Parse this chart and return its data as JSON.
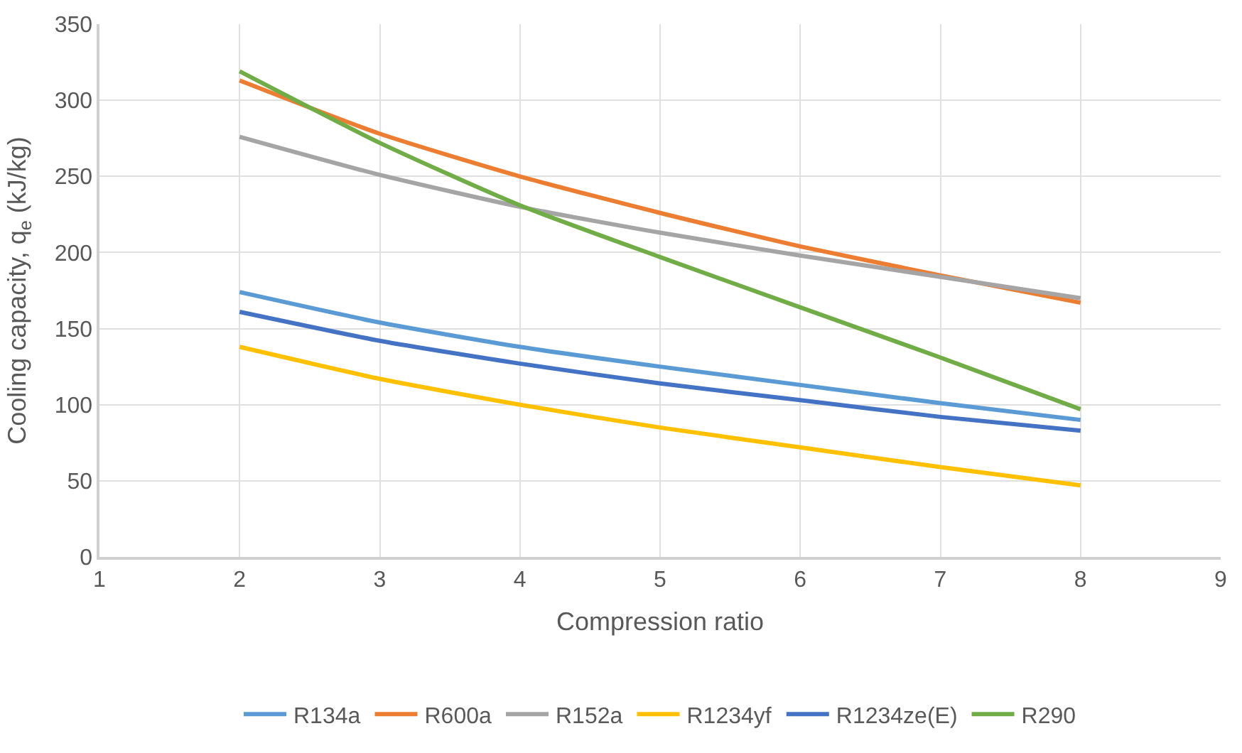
{
  "chart_data": {
    "type": "line",
    "xlabel": "Compression ratio",
    "ylabel": "Cooling capacity, q$_{e}$ (kJ/kg)",
    "x": [
      2,
      3,
      4,
      5,
      6,
      7,
      8
    ],
    "series": [
      {
        "name": "R134a",
        "color": "#5b9bd5",
        "values": [
          174,
          154,
          138,
          125,
          113,
          101,
          90
        ]
      },
      {
        "name": "R600a",
        "color": "#ed7d31",
        "values": [
          313,
          278,
          250,
          226,
          204,
          185,
          167
        ]
      },
      {
        "name": "R152a",
        "color": "#a5a5a5",
        "values": [
          276,
          251,
          230,
          213,
          198,
          184,
          170
        ]
      },
      {
        "name": "R1234yf",
        "color": "#ffc000",
        "values": [
          138,
          117,
          100,
          85,
          72,
          59,
          47
        ]
      },
      {
        "name": "R1234ze(E)",
        "color": "#4472c4",
        "values": [
          161,
          142,
          127,
          114,
          103,
          92,
          83
        ]
      },
      {
        "name": "R290",
        "color": "#70ad47",
        "values": [
          319,
          272,
          231,
          197,
          164,
          131,
          97
        ]
      }
    ],
    "xlim": [
      1,
      9
    ],
    "xticks": [
      1,
      2,
      3,
      4,
      5,
      6,
      7,
      8,
      9
    ],
    "ylim": [
      0,
      350
    ],
    "yticks": [
      0,
      50,
      100,
      150,
      200,
      250,
      300,
      350
    ],
    "grid": true,
    "legend": "bottom",
    "marker": "none",
    "line_style": "solid"
  }
}
